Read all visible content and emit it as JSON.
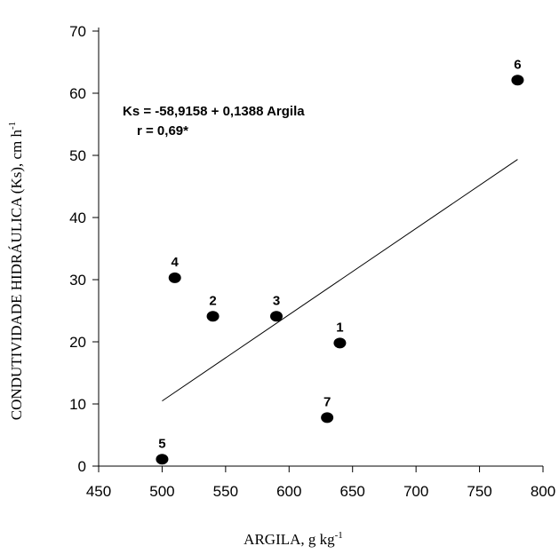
{
  "chart_data": {
    "type": "scatter",
    "title": "",
    "xlabel": "ARGILA, g kg",
    "xlabel_sup": "-1",
    "ylabel": "CONDUTIVIDADE HIDRÁULICA (Ks), cm h",
    "ylabel_sup": "-1",
    "xlim": [
      450,
      800
    ],
    "ylim": [
      0,
      70
    ],
    "xticks": [
      "450",
      "500",
      "550",
      "600",
      "650",
      "700",
      "750",
      "800"
    ],
    "yticks": [
      "0",
      "10",
      "20",
      "30",
      "40",
      "50",
      "60",
      "70"
    ],
    "grid": false,
    "points": [
      {
        "label": "1",
        "x": 640,
        "y": 19.8
      },
      {
        "label": "2",
        "x": 540,
        "y": 24.1
      },
      {
        "label": "3",
        "x": 590,
        "y": 24.1
      },
      {
        "label": "4",
        "x": 510,
        "y": 30.3
      },
      {
        "label": "5",
        "x": 500,
        "y": 1.1
      },
      {
        "label": "6",
        "x": 780,
        "y": 62.1
      },
      {
        "label": "7",
        "x": 630,
        "y": 7.8
      }
    ],
    "regression": {
      "intercept": -58.9158,
      "slope": 0.1388,
      "x_range": [
        500,
        780
      ]
    },
    "annotation": {
      "equation": "Ks = -58,9158 + 0,1388 Argila",
      "r": "r = 0,69*"
    }
  }
}
